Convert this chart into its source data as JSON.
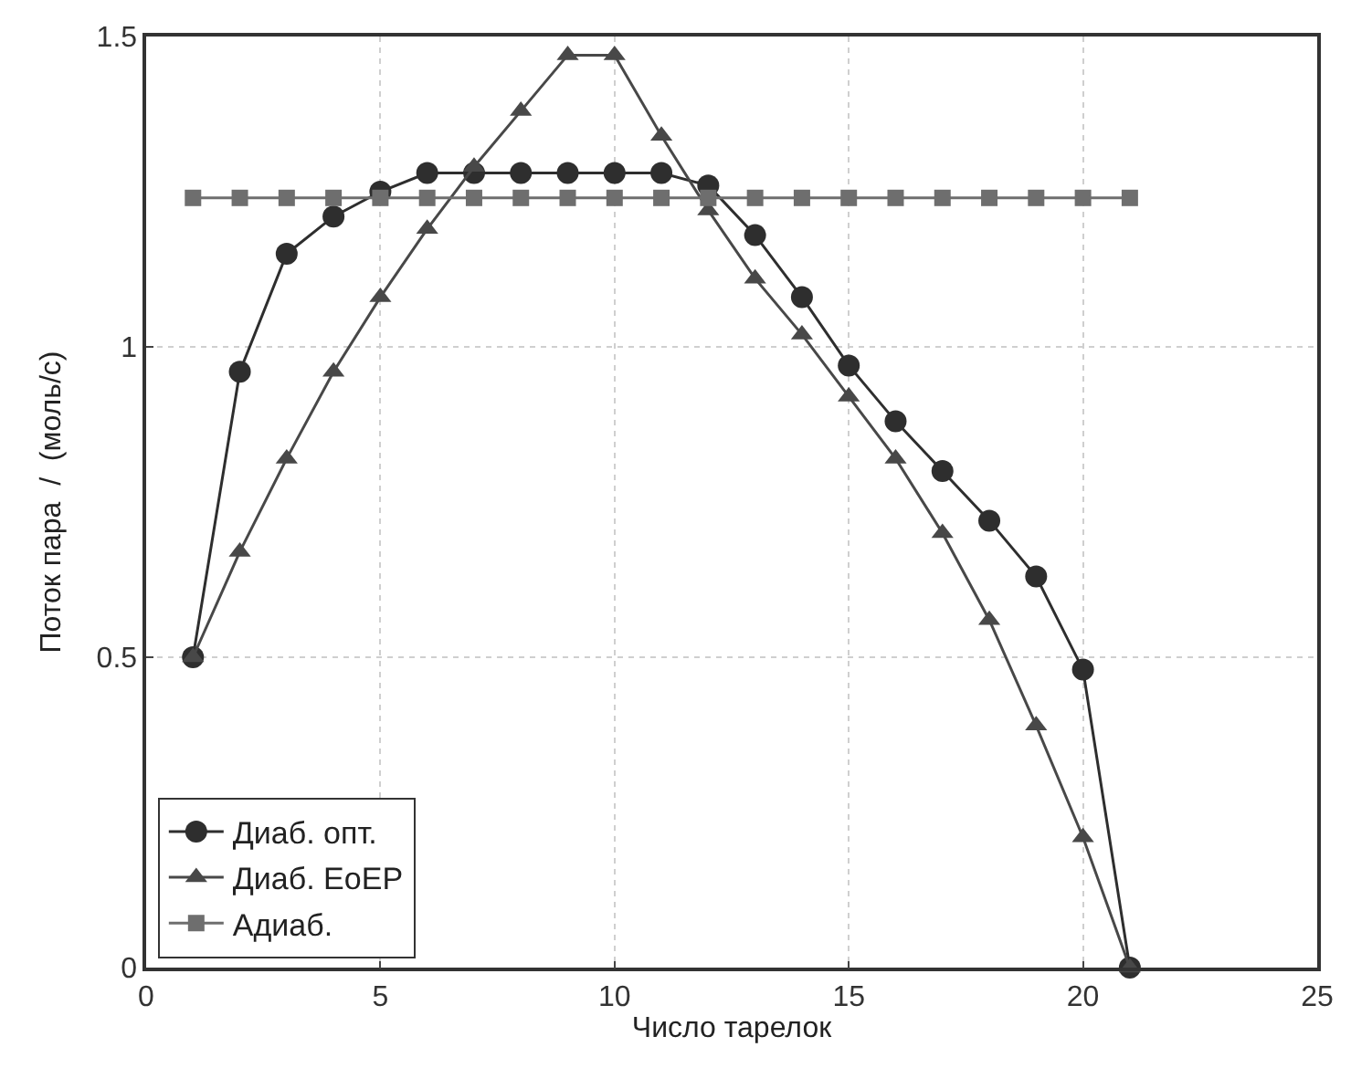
{
  "chart_data": {
    "type": "line",
    "xlabel": "Число тарелок",
    "ylabel": "Поток пара  /  (моль/с)",
    "x": [
      1,
      2,
      3,
      4,
      5,
      6,
      7,
      8,
      9,
      10,
      11,
      12,
      13,
      14,
      15,
      16,
      17,
      18,
      19,
      20,
      21
    ],
    "series": [
      {
        "name": "Диаб. опт.",
        "color": "#2e2e2e",
        "marker": "circle",
        "values": [
          0.5,
          0.96,
          1.15,
          1.21,
          1.25,
          1.28,
          1.28,
          1.28,
          1.28,
          1.28,
          1.28,
          1.26,
          1.18,
          1.08,
          0.97,
          0.88,
          0.8,
          0.72,
          0.63,
          0.48,
          0
        ]
      },
      {
        "name": "Диаб. EoEP",
        "color": "#484848",
        "marker": "triangle",
        "values": [
          0.5,
          0.67,
          0.82,
          0.96,
          1.08,
          1.19,
          1.29,
          1.38,
          1.47,
          1.47,
          1.34,
          1.22,
          1.11,
          1.02,
          0.92,
          0.82,
          0.7,
          0.56,
          0.39,
          0.21,
          0
        ]
      },
      {
        "name": "Адиаб.",
        "color": "#6e6e6e",
        "marker": "square",
        "values": [
          1.24,
          1.24,
          1.24,
          1.24,
          1.24,
          1.24,
          1.24,
          1.24,
          1.24,
          1.24,
          1.24,
          1.24,
          1.24,
          1.24,
          1.24,
          1.24,
          1.24,
          1.24,
          1.24,
          1.24,
          1.24
        ]
      }
    ],
    "xlim": [
      0,
      25
    ],
    "xticks": [
      0,
      5,
      10,
      15,
      20,
      25
    ],
    "ylim": [
      0,
      1.5
    ],
    "yticks": [
      0,
      0.5,
      1,
      1.5
    ],
    "grid": true,
    "legend": "bottom left",
    "line_style": "solid"
  }
}
